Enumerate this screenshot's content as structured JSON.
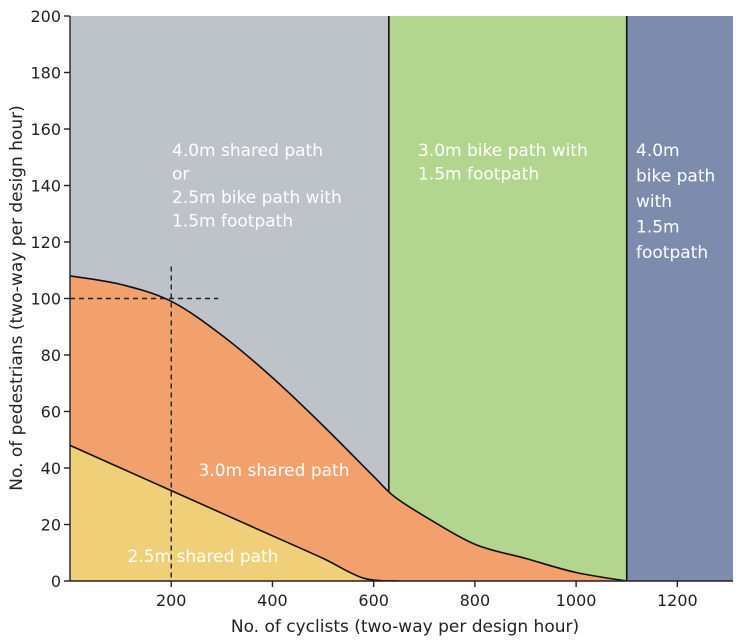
{
  "chart_data": {
    "type": "area",
    "xlabel": "No. of cyclists (two-way per design hour)",
    "ylabel": "No. of pedestrians (two-way per design hour)",
    "xlim": [
      0,
      1310
    ],
    "ylim": [
      0,
      200
    ],
    "x_ticks": [
      200,
      400,
      600,
      800,
      1000,
      1200
    ],
    "y_ticks": [
      0,
      20,
      40,
      60,
      80,
      100,
      120,
      140,
      160,
      180,
      200
    ],
    "colors": {
      "shared_4m": "#bec3ca",
      "bike_3m": "#b3d68e",
      "bike_4m": "#7d8cad",
      "shared_3m": "#f2a06c",
      "shared_25m": "#f0cf79"
    },
    "regions": [
      {
        "id": "shared-4m",
        "lines": [
          "4.0m shared path",
          "or",
          "2.5m bike path with",
          "1.5m footpath"
        ]
      },
      {
        "id": "bike-3m",
        "lines": [
          "3.0m bike path with",
          "1.5m footpath"
        ]
      },
      {
        "id": "bike-4m",
        "lines": [
          "4.0m",
          "bike path",
          "with",
          "1.5m",
          "footpath"
        ]
      },
      {
        "id": "shared-3m",
        "lines": [
          "3.0m shared path"
        ]
      },
      {
        "id": "shared-25m",
        "lines": [
          "2.5m shared path"
        ]
      }
    ],
    "boundaries": {
      "bike_path_start_x": 630,
      "wide_bike_path_start_x": 1100,
      "upper_curve": [
        [
          0,
          108
        ],
        [
          100,
          105
        ],
        [
          200,
          99
        ],
        [
          300,
          87
        ],
        [
          400,
          72
        ],
        [
          500,
          55
        ],
        [
          600,
          37
        ],
        [
          640,
          30
        ],
        [
          700,
          23
        ],
        [
          800,
          13
        ],
        [
          900,
          8
        ],
        [
          1000,
          3
        ],
        [
          1100,
          0
        ]
      ],
      "lower_curve": [
        [
          0,
          48
        ],
        [
          100,
          40
        ],
        [
          200,
          32
        ],
        [
          300,
          24
        ],
        [
          400,
          16
        ],
        [
          500,
          8
        ],
        [
          580,
          1
        ],
        [
          650,
          0
        ]
      ]
    },
    "example_reading": {
      "x": 200,
      "y": 100
    }
  }
}
